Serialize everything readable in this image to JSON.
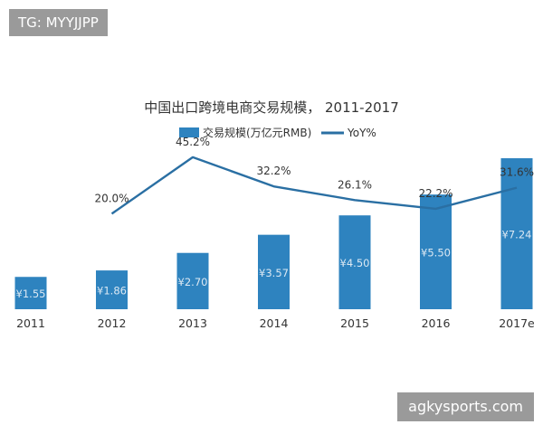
{
  "watermarks": {
    "top_left": "TG: MYYJJPP",
    "bottom_right": "agkysports.com"
  },
  "colors": {
    "bar": "#2e83bf",
    "line": "#2a6fa3",
    "bar_label": "#dbe8f3",
    "badge": "#9a9a9a"
  },
  "chart_data": {
    "type": "bar",
    "title": "中国出口跨境电商交易规模， 2011-2017",
    "categories": [
      "2011",
      "2012",
      "2013",
      "2014",
      "2015",
      "2016",
      "2017e"
    ],
    "series": [
      {
        "name": "交易规模(万亿元RMB)",
        "type": "bar",
        "values": [
          1.55,
          1.86,
          2.7,
          3.57,
          4.5,
          5.5,
          7.24
        ],
        "labels": [
          "¥1.55",
          "¥1.86",
          "¥2.70",
          "¥3.57",
          "¥4.50",
          "¥5.50",
          "¥7.24"
        ]
      },
      {
        "name": "YoY%",
        "type": "line",
        "values": [
          null,
          20.0,
          45.2,
          32.2,
          26.1,
          22.2,
          31.6
        ],
        "labels": [
          "",
          "20.0%",
          "45.2%",
          "32.2%",
          "26.1%",
          "22.2%",
          "31.6%"
        ]
      }
    ],
    "legend_position": "top-center",
    "grid": false,
    "ylim_bar": [
      0,
      7.8
    ],
    "ylim_line": [
      0,
      60
    ]
  }
}
